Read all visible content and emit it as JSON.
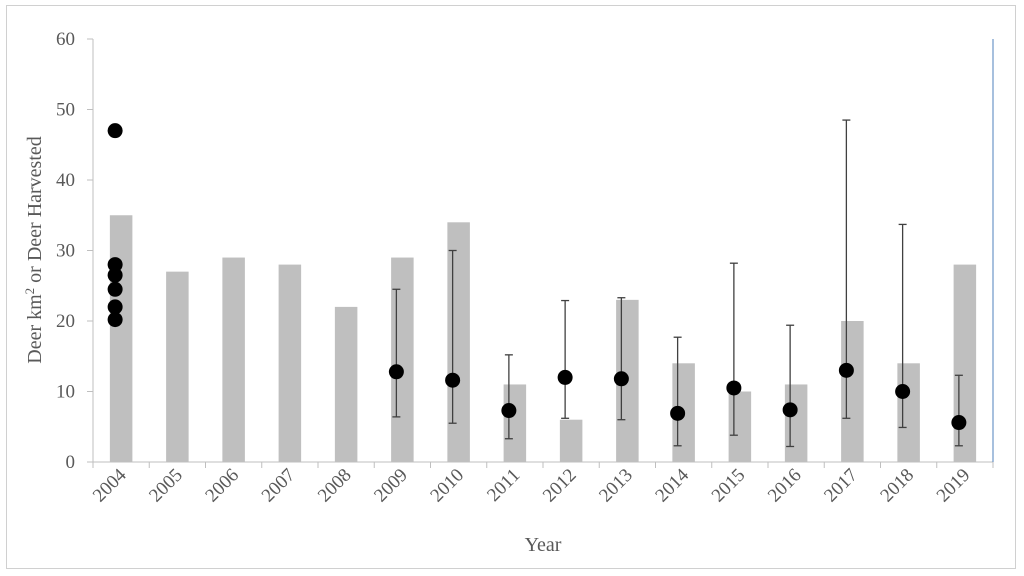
{
  "chart_data": {
    "type": "bar",
    "title": "",
    "xlabel": "Year",
    "ylabel_main": "Deer km",
    "ylabel_sup": "2",
    "ylabel_rest": " or Deer Harvested",
    "ylim": [
      0,
      60
    ],
    "yticks": [
      0,
      10,
      20,
      30,
      40,
      50,
      60
    ],
    "grid": false,
    "legend": "none",
    "categories": [
      "2004",
      "2005",
      "2006",
      "2007",
      "2008",
      "2009",
      "2010",
      "2011",
      "2012",
      "2013",
      "2014",
      "2015",
      "2016",
      "2017",
      "2018",
      "2019"
    ],
    "series": [
      {
        "type": "bar",
        "color": "#bfbfbf",
        "values": [
          35,
          27,
          29,
          28,
          22,
          29,
          34,
          11,
          6,
          23,
          14,
          10,
          11,
          20,
          14,
          28
        ]
      },
      {
        "type": "scatter-errorbar",
        "color": "#000000",
        "points": [
          {
            "x": "2004",
            "y": 47
          },
          {
            "x": "2004",
            "y": 28
          },
          {
            "x": "2004",
            "y": 26.5
          },
          {
            "x": "2004",
            "y": 24.5
          },
          {
            "x": "2004",
            "y": 22
          },
          {
            "x": "2004",
            "y": 20.2
          },
          {
            "x": "2009",
            "y": 12.8,
            "low": 6.4,
            "high": 24.5
          },
          {
            "x": "2010",
            "y": 11.6,
            "low": 5.5,
            "high": 30
          },
          {
            "x": "2011",
            "y": 7.3,
            "low": 3.3,
            "high": 15.2
          },
          {
            "x": "2012",
            "y": 12,
            "low": 6.2,
            "high": 22.9
          },
          {
            "x": "2013",
            "y": 11.8,
            "low": 6,
            "high": 23.3
          },
          {
            "x": "2014",
            "y": 6.9,
            "low": 2.3,
            "high": 17.7
          },
          {
            "x": "2015",
            "y": 10.5,
            "low": 3.8,
            "high": 28.2
          },
          {
            "x": "2016",
            "y": 7.4,
            "low": 2.2,
            "high": 19.4
          },
          {
            "x": "2017",
            "y": 13,
            "low": 6.2,
            "high": 48.5
          },
          {
            "x": "2018",
            "y": 10,
            "low": 4.9,
            "high": 33.7
          },
          {
            "x": "2019",
            "y": 5.6,
            "low": 2.3,
            "high": 12.3
          }
        ]
      }
    ]
  }
}
